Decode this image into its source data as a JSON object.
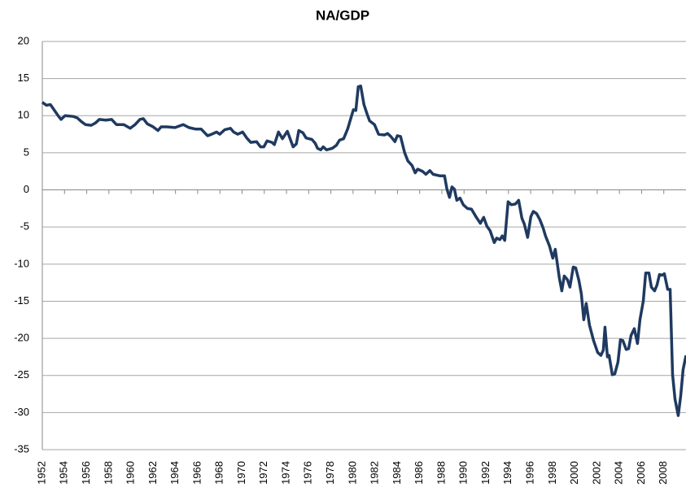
{
  "chart_data": {
    "type": "line",
    "title": "NA/GDP",
    "xlim": [
      1952,
      2010
    ],
    "xticks": [
      1952,
      1954,
      1956,
      1958,
      1960,
      1962,
      1964,
      1966,
      1968,
      1970,
      1972,
      1974,
      1976,
      1978,
      1980,
      1982,
      1984,
      1986,
      1988,
      1990,
      1992,
      1994,
      1996,
      1998,
      2000,
      2002,
      2004,
      2006,
      2008
    ],
    "ylim": [
      -35,
      20
    ],
    "yticks": [
      -35,
      -30,
      -25,
      -20,
      -15,
      -10,
      -5,
      0,
      5,
      10,
      15,
      20
    ],
    "grid": true,
    "x": [
      1952.0,
      1952.37,
      1952.73,
      1953.1,
      1953.47,
      1953.69,
      1954.05,
      1954.79,
      1955.15,
      1955.52,
      1955.89,
      1956.4,
      1956.77,
      1957.14,
      1957.72,
      1958.24,
      1958.68,
      1959.34,
      1959.92,
      1960.36,
      1960.8,
      1961.1,
      1961.46,
      1961.98,
      1962.42,
      1962.71,
      1963.23,
      1963.96,
      1964.69,
      1965.21,
      1965.79,
      1966.31,
      1966.89,
      1967.26,
      1967.7,
      1967.99,
      1968.43,
      1968.95,
      1969.24,
      1969.61,
      1970.05,
      1970.42,
      1970.78,
      1971.3,
      1971.66,
      1971.96,
      1972.25,
      1972.69,
      1972.91,
      1973.28,
      1973.64,
      1974.08,
      1974.6,
      1974.89,
      1975.11,
      1975.48,
      1975.77,
      1976.29,
      1976.58,
      1976.8,
      1977.09,
      1977.31,
      1977.61,
      1978.12,
      1978.49,
      1978.78,
      1979.15,
      1979.51,
      1979.73,
      1980.03,
      1980.25,
      1980.47,
      1980.69,
      1980.98,
      1981.27,
      1981.49,
      1981.93,
      1982.3,
      1982.82,
      1983.11,
      1983.4,
      1983.77,
      1983.99,
      1984.28,
      1984.65,
      1984.94,
      1985.31,
      1985.6,
      1985.82,
      1986.26,
      1986.56,
      1986.92,
      1987.22,
      1987.8,
      1988.24,
      1988.46,
      1988.69,
      1988.91,
      1989.13,
      1989.35,
      1989.64,
      1989.93,
      1990.3,
      1990.67,
      1991.11,
      1991.47,
      1991.77,
      1992.06,
      1992.35,
      1992.72,
      1992.94,
      1993.23,
      1993.45,
      1993.67,
      1993.97,
      1994.26,
      1994.63,
      1994.92,
      1995.21,
      1995.43,
      1995.73,
      1996.02,
      1996.24,
      1996.54,
      1996.83,
      1997.12,
      1997.34,
      1997.71,
      1998.0,
      1998.22,
      1998.59,
      1998.81,
      1999.03,
      1999.32,
      1999.54,
      1999.84,
      2000.06,
      2000.35,
      2000.57,
      2000.79,
      2001.01,
      2001.3,
      2001.67,
      2002.04,
      2002.33,
      2002.55,
      2002.7,
      2002.92,
      2003.07,
      2003.36,
      2003.58,
      2003.87,
      2004.09,
      2004.31,
      2004.61,
      2004.83,
      2005.05,
      2005.34,
      2005.63,
      2005.85,
      2006.15,
      2006.37,
      2006.66,
      2006.88,
      2007.17,
      2007.39,
      2007.61,
      2007.83,
      2008.05,
      2008.35,
      2008.57,
      2008.79,
      2009.01,
      2009.3,
      2009.52,
      2009.74,
      2010.0
    ],
    "series": [
      {
        "color": "#1f3a60",
        "values": [
          11.8,
          11.4,
          11.5,
          10.7,
          9.9,
          9.5,
          10,
          9.9,
          9.7,
          9.2,
          8.8,
          8.7,
          9,
          9.5,
          9.4,
          9.5,
          8.8,
          8.8,
          8.3,
          8.8,
          9.5,
          9.6,
          8.9,
          8.5,
          8,
          8.5,
          8.5,
          8.4,
          8.8,
          8.4,
          8.2,
          8.2,
          7.3,
          7.5,
          7.8,
          7.5,
          8.1,
          8.3,
          7.8,
          7.5,
          7.8,
          7,
          6.4,
          6.5,
          5.8,
          5.8,
          6.6,
          6.4,
          6.1,
          7.8,
          6.9,
          7.9,
          5.8,
          6.2,
          8,
          7.7,
          7,
          6.8,
          6.3,
          5.6,
          5.4,
          5.8,
          5.4,
          5.6,
          6,
          6.7,
          6.9,
          8.2,
          9.3,
          10.8,
          10.7,
          13.9,
          14,
          11.5,
          10.2,
          9.3,
          8.8,
          7.5,
          7.4,
          7.6,
          7.2,
          6.5,
          7.3,
          7.2,
          5,
          3.9,
          3.3,
          2.3,
          2.8,
          2.5,
          2.1,
          2.6,
          2.1,
          1.9,
          1.9,
          0.1,
          -1,
          0.4,
          0.1,
          -1.4,
          -1.1,
          -2,
          -2.5,
          -2.6,
          -3.7,
          -4.5,
          -3.7,
          -4.9,
          -5.5,
          -7.1,
          -6.5,
          -6.7,
          -6.2,
          -6.8,
          -1.6,
          -2,
          -1.9,
          -1.4,
          -3.8,
          -4.6,
          -6.4,
          -3.6,
          -2.9,
          -3.2,
          -4,
          -5.1,
          -6.2,
          -7.6,
          -9.2,
          -8,
          -11.9,
          -13.6,
          -11.6,
          -12.1,
          -13.1,
          -10.4,
          -10.5,
          -12.2,
          -14,
          -17.5,
          -15.3,
          -18.2,
          -20.3,
          -21.9,
          -22.3,
          -21.6,
          -18.5,
          -22.5,
          -22.3,
          -24.9,
          -24.8,
          -23.2,
          -20.2,
          -20.3,
          -21.5,
          -21.4,
          -19.6,
          -18.7,
          -20.7,
          -17.5,
          -15,
          -11.2,
          -11.2,
          -13.1,
          -13.6,
          -12.8,
          -11.4,
          -11.5,
          -11.3,
          -13.4,
          -13.4,
          -24.9,
          -28.2,
          -30.4,
          -27.8,
          -24.2,
          -22.3
        ]
      }
    ]
  }
}
